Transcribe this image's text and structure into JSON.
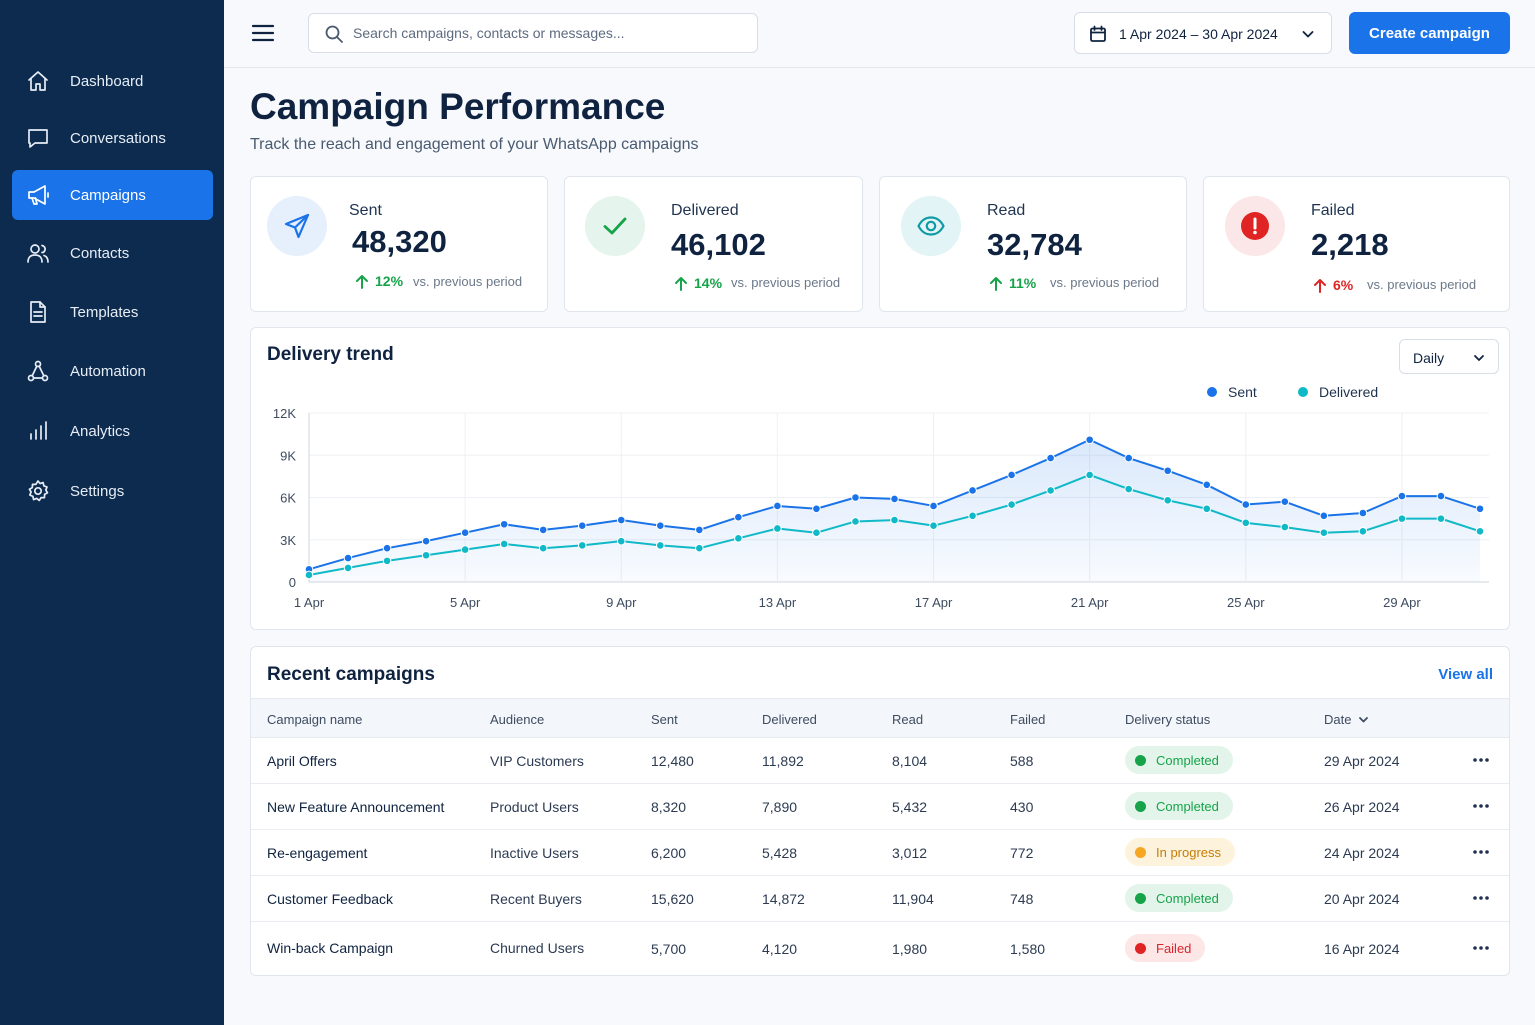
{
  "sidebar": {
    "items": [
      {
        "label": "Dashboard",
        "icon": "home-icon",
        "active": false
      },
      {
        "label": "Conversations",
        "icon": "chat-icon",
        "active": false
      },
      {
        "label": "Campaigns",
        "icon": "megaphone-icon",
        "active": true
      },
      {
        "label": "Contacts",
        "icon": "users-icon",
        "active": false
      },
      {
        "label": "Templates",
        "icon": "document-icon",
        "active": false
      },
      {
        "label": "Automation",
        "icon": "workflow-icon",
        "active": false
      },
      {
        "label": "Analytics",
        "icon": "bar-chart-icon",
        "active": false
      },
      {
        "label": "Settings",
        "icon": "gear-icon",
        "active": false
      }
    ]
  },
  "topbar": {
    "search_placeholder": "Search campaigns, contacts or messages...",
    "date_range": "1 Apr 2024 – 30 Apr 2024",
    "create_label": "Create campaign"
  },
  "header": {
    "title": "Campaign Performance",
    "subtitle": "Track the reach and engagement of your WhatsApp campaigns"
  },
  "stats": [
    {
      "label": "Sent",
      "value": "48,320",
      "change": "12%",
      "direction": "up",
      "vs": "vs. previous period",
      "icon": "send-icon",
      "color": "#1a73e8"
    },
    {
      "label": "Delivered",
      "value": "46,102",
      "change": "14%",
      "direction": "up",
      "vs": "vs. previous period",
      "icon": "check-icon",
      "color": "#16a34a"
    },
    {
      "label": "Read",
      "value": "32,784",
      "change": "11%",
      "direction": "up",
      "vs": "vs. previous period",
      "icon": "eye-icon",
      "color": "#0e9aa7"
    },
    {
      "label": "Failed",
      "value": "2,218",
      "change": "6%",
      "direction": "up",
      "vs": "vs. previous period",
      "icon": "alert-icon",
      "color": "#e02424"
    }
  ],
  "chart": {
    "title": "Delivery trend",
    "period_select": "Daily"
  },
  "chart_data": {
    "type": "line",
    "title": "Delivery trend",
    "xlabel": "",
    "ylabel": "",
    "x": [
      "1 Apr",
      "2 Apr",
      "3 Apr",
      "4 Apr",
      "5 Apr",
      "6 Apr",
      "7 Apr",
      "8 Apr",
      "9 Apr",
      "10 Apr",
      "11 Apr",
      "12 Apr",
      "13 Apr",
      "14 Apr",
      "15 Apr",
      "16 Apr",
      "17 Apr",
      "18 Apr",
      "19 Apr",
      "20 Apr",
      "21 Apr",
      "22 Apr",
      "23 Apr",
      "24 Apr",
      "25 Apr",
      "26 Apr",
      "27 Apr",
      "28 Apr",
      "29 Apr",
      "30 Apr",
      "1 May"
    ],
    "x_tick_labels": [
      "1 Apr",
      "5 Apr",
      "9 Apr",
      "13 Apr",
      "17 Apr",
      "21 Apr",
      "25 Apr",
      "29 Apr"
    ],
    "y_tick_labels": [
      "0",
      "3K",
      "6K",
      "9K",
      "12K"
    ],
    "ylim": [
      0,
      12000
    ],
    "grid": true,
    "legend": "top-right",
    "series": [
      {
        "name": "Sent",
        "color": "#1a73e8",
        "values": [
          900,
          1700,
          2400,
          2900,
          3500,
          4100,
          3700,
          4000,
          4400,
          4000,
          3700,
          4600,
          5400,
          5200,
          6000,
          5900,
          5400,
          6500,
          7600,
          8800,
          10100,
          8800,
          7900,
          6900,
          5500,
          5700,
          4700,
          4900,
          6100,
          6100,
          5200
        ]
      },
      {
        "name": "Delivered",
        "color": "#10b9c7",
        "values": [
          500,
          1000,
          1500,
          1900,
          2300,
          2700,
          2400,
          2600,
          2900,
          2600,
          2400,
          3100,
          3800,
          3500,
          4300,
          4400,
          4000,
          4700,
          5500,
          6500,
          7600,
          6600,
          5800,
          5200,
          4200,
          3900,
          3500,
          3600,
          4500,
          4500,
          3600
        ]
      }
    ]
  },
  "table": {
    "title": "Recent campaigns",
    "view_all": "View all",
    "columns": [
      "Campaign name",
      "Audience",
      "Sent",
      "Delivered",
      "Read",
      "Failed",
      "Delivery status",
      "Date"
    ],
    "rows": [
      {
        "name": "April Offers",
        "audience": "VIP Customers",
        "sent": "12,480",
        "delivered": "11,892",
        "read": "8,104",
        "failed": "588",
        "status": "Completed",
        "status_kind": "completed",
        "date": "29 Apr 2024"
      },
      {
        "name": "New Feature Announcement",
        "audience": "Product Users",
        "sent": "8,320",
        "delivered": "7,890",
        "read": "5,432",
        "failed": "430",
        "status": "Completed",
        "status_kind": "completed",
        "date": "26 Apr 2024"
      },
      {
        "name": "Re-engagement",
        "audience": "Inactive Users",
        "sent": "6,200",
        "delivered": "5,428",
        "read": "3,012",
        "failed": "772",
        "status": "In progress",
        "status_kind": "progress",
        "date": "24 Apr 2024"
      },
      {
        "name": "Customer Feedback",
        "audience": "Recent Buyers",
        "sent": "15,620",
        "delivered": "14,872",
        "read": "11,904",
        "failed": "748",
        "status": "Completed",
        "status_kind": "completed",
        "date": "20 Apr 2024"
      },
      {
        "name": "Win-back Campaign",
        "audience": "Churned Users",
        "sent": "5,700",
        "delivered": "4,120",
        "read": "1,980",
        "failed": "1,580",
        "status": "Failed",
        "status_kind": "failed",
        "date": "16 Apr 2024"
      }
    ]
  }
}
